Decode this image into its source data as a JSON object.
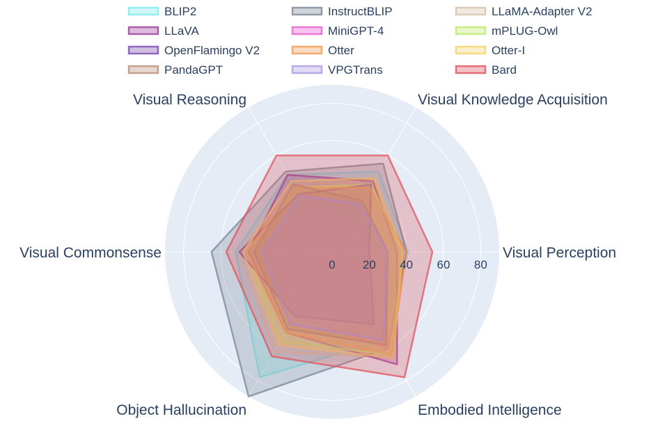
{
  "chart_data": {
    "type": "radar",
    "axes": [
      "Visual Perception",
      "Visual Knowledge Acquisition",
      "Visual Reasoning",
      "Visual Commonsense",
      "Object Hallucination",
      "Embodied Intelligence"
    ],
    "radial_ticks": [
      "0",
      "20",
      "40",
      "60",
      "80"
    ],
    "rlim": [
      0,
      90
    ],
    "legend_position": "top",
    "series": [
      {
        "name": "BLIP2",
        "color": "#7fe8ee",
        "values": [
          41,
          50,
          48,
          52,
          78,
          55
        ]
      },
      {
        "name": "InstructBLIP",
        "color": "#7b8795",
        "values": [
          40,
          55,
          50,
          65,
          90,
          60
        ]
      },
      {
        "name": "LLaMA-Adapter V2",
        "color": "#d6c2a8",
        "values": [
          38,
          45,
          42,
          50,
          62,
          66
        ]
      },
      {
        "name": "LLaVA",
        "color": "#9b3d9b",
        "values": [
          35,
          44,
          48,
          45,
          50,
          70
        ]
      },
      {
        "name": "MiniGPT-4",
        "color": "#e85ad0",
        "values": [
          28,
          20,
          30,
          35,
          40,
          60
        ]
      },
      {
        "name": "mPLUG-Owl",
        "color": "#bde86e",
        "values": [
          38,
          42,
          40,
          46,
          56,
          64
        ]
      },
      {
        "name": "OpenFlamingo V2",
        "color": "#7b4bb0",
        "values": [
          20,
          42,
          36,
          50,
          40,
          45
        ]
      },
      {
        "name": "Otter",
        "color": "#f19b54",
        "values": [
          40,
          40,
          40,
          46,
          50,
          64
        ]
      },
      {
        "name": "Otter-I",
        "color": "#f3d36b",
        "values": [
          38,
          46,
          44,
          48,
          58,
          66
        ]
      },
      {
        "name": "PandaGPT",
        "color": "#b89077",
        "values": [
          30,
          32,
          42,
          42,
          48,
          58
        ]
      },
      {
        "name": "VPGTrans",
        "color": "#a899e6",
        "values": [
          30,
          30,
          35,
          38,
          45,
          55
        ]
      },
      {
        "name": "Bard",
        "color": "#e0515c",
        "values": [
          54,
          60,
          60,
          57,
          65,
          78
        ]
      }
    ]
  }
}
